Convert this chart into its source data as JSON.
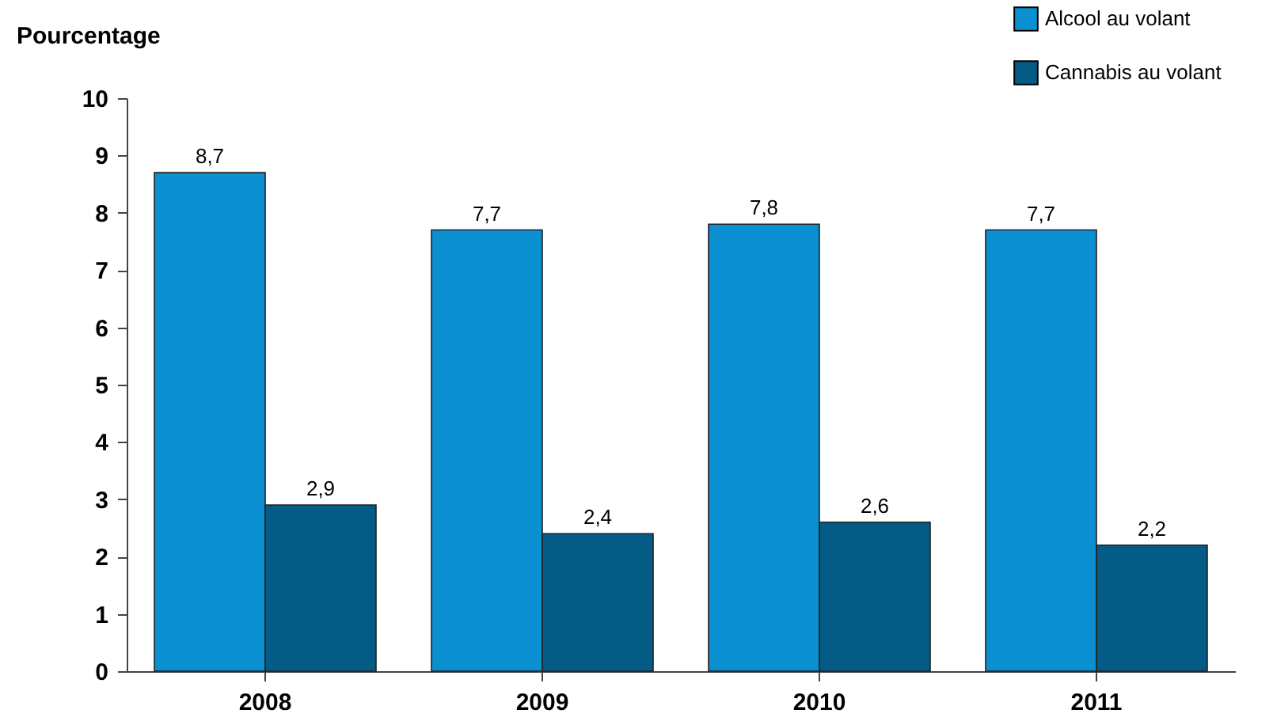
{
  "chart_data": {
    "type": "bar",
    "ylabel": "Pourcentage",
    "categories": [
      "2008",
      "2009",
      "2010",
      "2011"
    ],
    "series": [
      {
        "name": "Alcool au volant",
        "color": "#0a8fd0",
        "values": [
          8.7,
          7.7,
          7.8,
          7.7
        ],
        "value_labels": [
          "8,7",
          "7,7",
          "7,8",
          "7,7"
        ]
      },
      {
        "name": "Cannabis au volant",
        "color": "#045b86",
        "values": [
          2.9,
          2.4,
          2.6,
          2.2
        ],
        "value_labels": [
          "2,9",
          "2,4",
          "2,6",
          "2,2"
        ]
      }
    ],
    "ylim": [
      0,
      10
    ],
    "yticks": [
      0,
      1,
      2,
      3,
      4,
      5,
      6,
      7,
      8,
      9,
      10
    ],
    "legend": "top right"
  }
}
